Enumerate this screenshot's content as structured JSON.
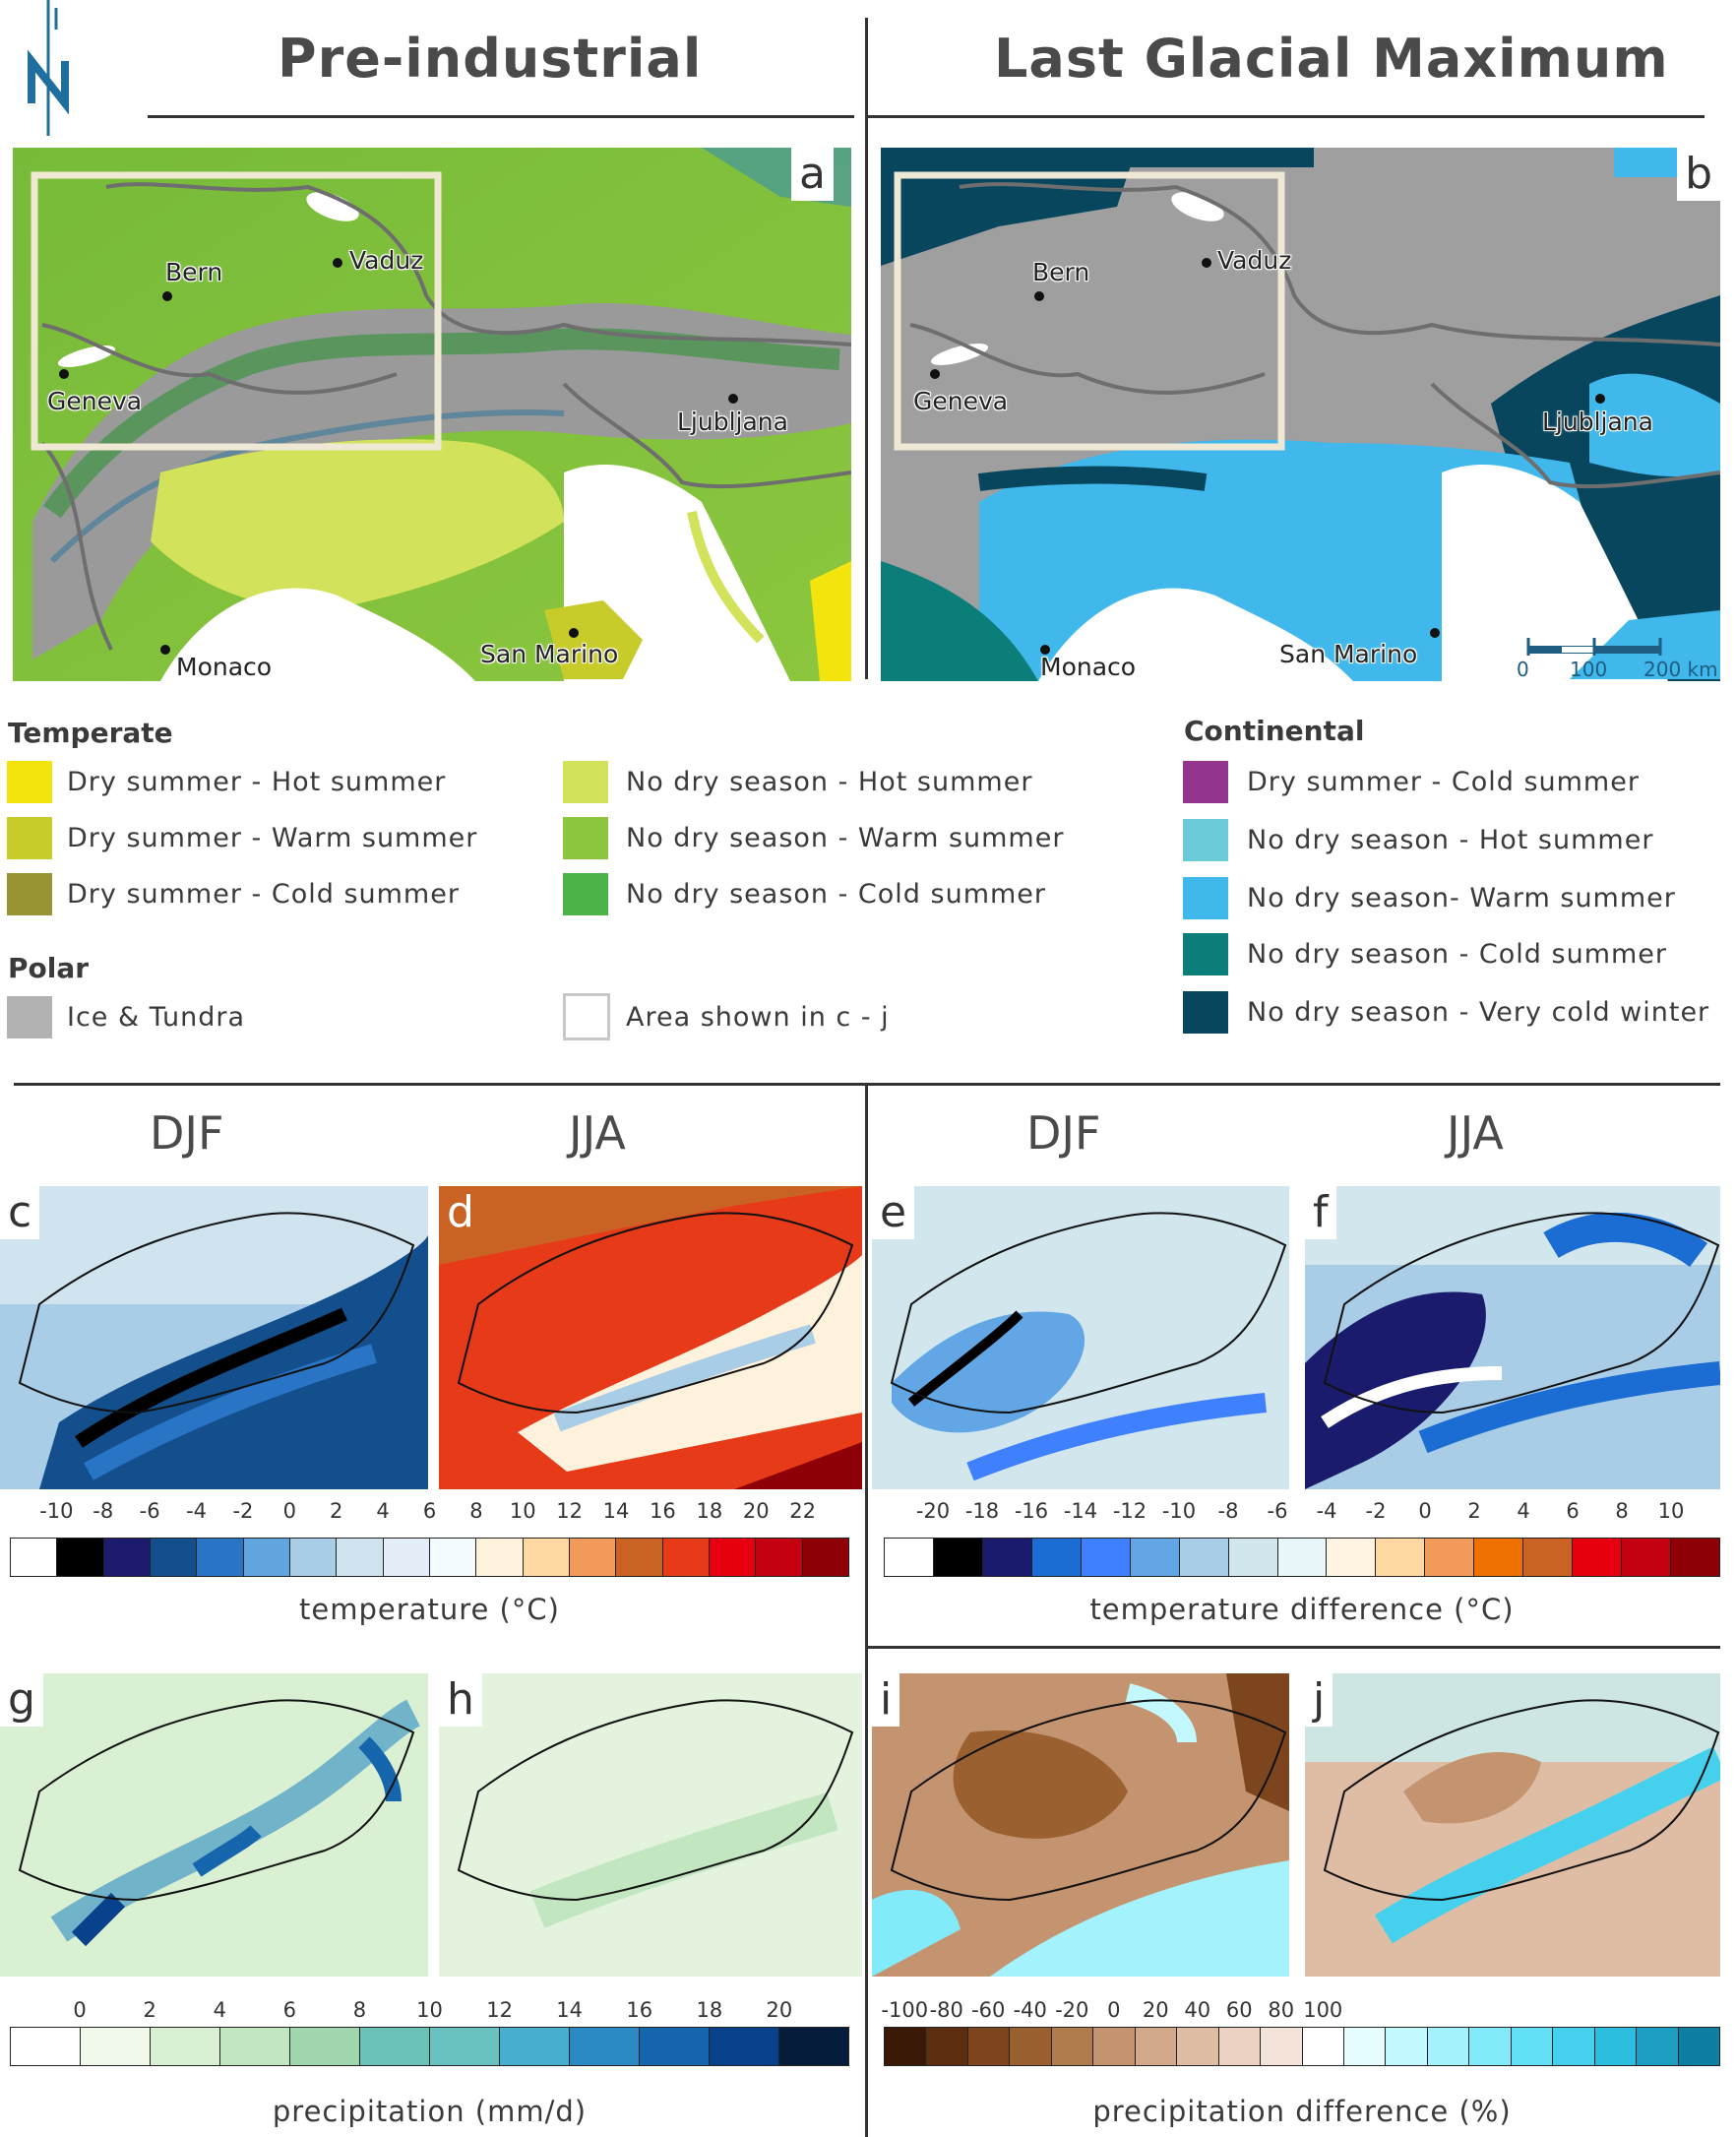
{
  "headers": {
    "pre_industrial": "Pre-industrial",
    "lgm": "Last Glacial Maximum"
  },
  "north_arrow": {
    "letter": "N",
    "icon": "north-arrow-icon"
  },
  "panel_letters": [
    "a",
    "b",
    "c",
    "d",
    "e",
    "f",
    "g",
    "h",
    "i",
    "j"
  ],
  "cities": {
    "bern": "Bern",
    "vaduz": "Vaduz",
    "geneva": "Geneva",
    "ljubljana": "Ljubljana",
    "monaco": "Monaco",
    "san_marino": "San Marino"
  },
  "scalebar": {
    "t0": "0",
    "t1": "100",
    "t2": "200 km"
  },
  "legend": {
    "temperate_title": "Temperate",
    "polar_title": "Polar",
    "continental_title": "Continental",
    "items": {
      "dry_hot": {
        "label": "Dry summer - Hot summer",
        "color": "#f2e40c"
      },
      "dry_warm": {
        "label": "Dry summer - Warm summer",
        "color": "#c8cc2a"
      },
      "dry_cold": {
        "label": "Dry summer - Cold summer",
        "color": "#999433"
      },
      "nodry_hot": {
        "label": "No dry season - Hot summer",
        "color": "#d2e25a"
      },
      "nodry_warm": {
        "label": "No dry season - Warm summer",
        "color": "#8cc63e"
      },
      "nodry_cold": {
        "label": "No dry season - Cold summer",
        "color": "#4bb348"
      },
      "ice_tundra": {
        "label": "Ice & Tundra",
        "color": "#b2b2b2"
      },
      "area_shown": {
        "label": "Area shown in c - j",
        "color": "#ffffff"
      },
      "c_dry_cold": {
        "label": "Dry summer - Cold summer",
        "color": "#93358f"
      },
      "c_nodry_hot": {
        "label": "No dry season - Hot summer",
        "color": "#6ccbd9"
      },
      "c_nodry_warm": {
        "label": "No dry season- Warm summer",
        "color": "#40b8ec"
      },
      "c_nodry_cold": {
        "label": "No dry season - Cold summer",
        "color": "#0b7e7a"
      },
      "c_nodry_vcold": {
        "label": "No dry season - Very cold winter",
        "color": "#08465e"
      }
    }
  },
  "seasons": {
    "djf": "DJF",
    "jja": "JJA"
  },
  "colorbars": {
    "temperature": {
      "label": "temperature (°C)",
      "ticks": [
        "-10",
        "-8",
        "-6",
        "-4",
        "-2",
        "0",
        "2",
        "4",
        "6",
        "8",
        "10",
        "12",
        "14",
        "16",
        "18",
        "20",
        "22"
      ],
      "colors": [
        "#ffffff",
        "#000000",
        "#1c1b6e",
        "#124f8c",
        "#2a74c6",
        "#62a6e0",
        "#a9cde6",
        "#cfe4ef",
        "#e4eef9",
        "#f4fbff",
        "#fff2dc",
        "#fed7a1",
        "#f29b5b",
        "#c96223",
        "#e63a19",
        "#e6000f",
        "#c40010",
        "#8e0007"
      ]
    },
    "temperature_difference": {
      "label": "temperature difference (°C)",
      "ticks": [
        "-20",
        "-18",
        "-16",
        "-14",
        "-12",
        "-10",
        "-8",
        "-6",
        "-4",
        "-2",
        "0",
        "2",
        "4",
        "6",
        "8",
        "10"
      ],
      "colors": [
        "#ffffff",
        "#000000",
        "#1b1b6e",
        "#1b6cd3",
        "#3f80ff",
        "#62a6e6",
        "#a9cde6",
        "#d2e6ee",
        "#e8f6f9",
        "#fff3e2",
        "#fed7a1",
        "#f29b5b",
        "#ee7000",
        "#c96223",
        "#e6000f",
        "#c40010",
        "#8e0007"
      ]
    },
    "precipitation": {
      "label": "precipitation (mm/d)",
      "ticks": [
        "0",
        "2",
        "4",
        "6",
        "8",
        "10",
        "12",
        "14",
        "16",
        "18",
        "20"
      ],
      "colors": [
        "#ffffff",
        "#f0f9ea",
        "#d9f0d3",
        "#c2e6c0",
        "#9fd6ae",
        "#6cc1b6",
        "#69c2c0",
        "#47aed0",
        "#2b8ac3",
        "#1666ad",
        "#08418c",
        "#051d3b"
      ]
    },
    "precipitation_difference": {
      "label": "precipitation difference (%)",
      "ticks": [
        "-100",
        "-80",
        "-60",
        "-40",
        "-20",
        "0",
        "20",
        "40",
        "60",
        "80",
        "100"
      ],
      "colors": [
        "#3a1a06",
        "#5c2d0f",
        "#7d451e",
        "#9a6030",
        "#b07c4e",
        "#c49470",
        "#d2a98a",
        "#dfbda5",
        "#ebd2c2",
        "#f4e3d8",
        "#ffffff",
        "#e6fdff",
        "#c4f8ff",
        "#a4f2fc",
        "#83eafa",
        "#62dff5",
        "#45d1ee",
        "#2dbdde",
        "#1c9fc2",
        "#0f7ea3"
      ]
    }
  }
}
